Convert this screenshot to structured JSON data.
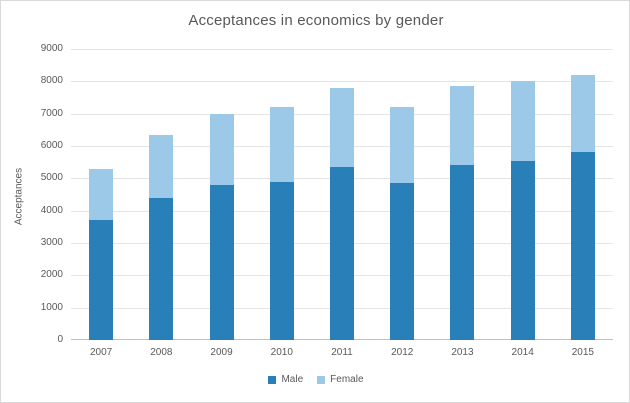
{
  "chart": {
    "title": "Acceptances in economics by gender",
    "y_axis_title": "Acceptances"
  },
  "chart_data": {
    "type": "bar",
    "stacked": true,
    "title": "Acceptances in economics by gender",
    "xlabel": "",
    "ylabel": "Acceptances",
    "categories": [
      "2007",
      "2008",
      "2009",
      "2010",
      "2011",
      "2012",
      "2013",
      "2014",
      "2015"
    ],
    "series": [
      {
        "name": "Male",
        "color": "#2980b8",
        "values": [
          3700,
          4400,
          4800,
          4900,
          5350,
          4850,
          5400,
          5550,
          5800
        ]
      },
      {
        "name": "Female",
        "color": "#9cc9e8",
        "values": [
          1600,
          1950,
          2200,
          2300,
          2450,
          2350,
          2450,
          2450,
          2400
        ]
      }
    ],
    "totals": [
      5300,
      6350,
      7000,
      7200,
      7800,
      7200,
      7850,
      8000,
      8200
    ],
    "ylim": [
      0,
      9000
    ],
    "ytick_interval": 1000,
    "ytick_labels": [
      "0",
      "1000",
      "2000",
      "3000",
      "4000",
      "5000",
      "6000",
      "7000",
      "8000",
      "9000"
    ],
    "grid": true,
    "legend_position": "bottom"
  },
  "colors": {
    "male": "#2980b8",
    "female": "#9cc9e8",
    "gridline": "#e4e4e4",
    "axis_line": "#bfbfbf",
    "text": "#595959",
    "border": "#d9d9d9",
    "background": "#ffffff"
  }
}
